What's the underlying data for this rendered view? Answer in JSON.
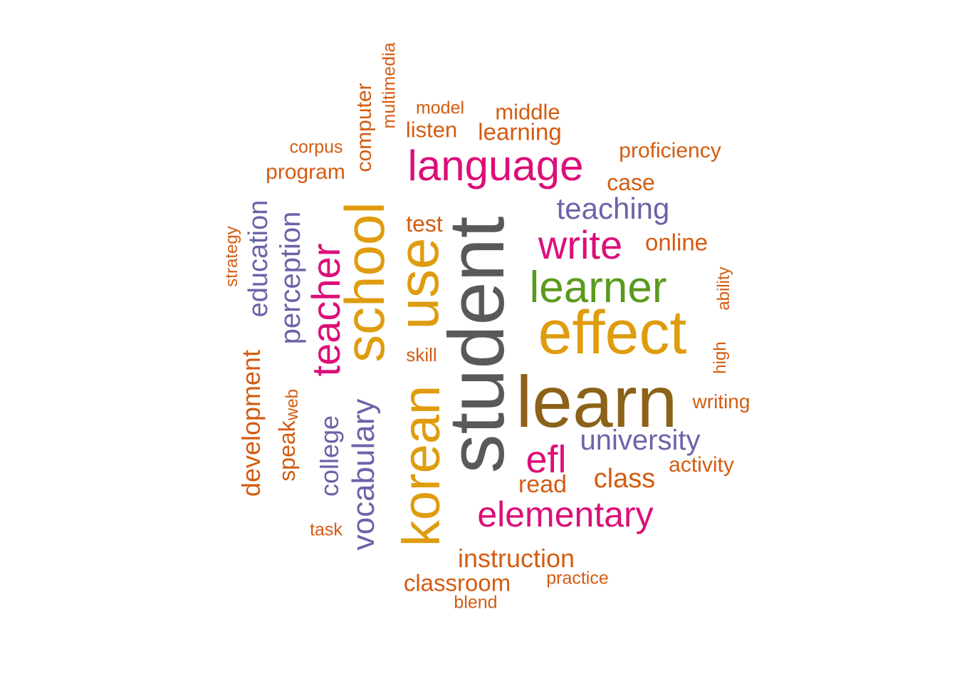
{
  "colors": {
    "gray": "#595959",
    "brown": "#8c6219",
    "gold": "#df9c0e",
    "green": "#5a9a1f",
    "magenta": "#dc0f78",
    "purple": "#6a64a8",
    "orange": "#d35c11"
  },
  "words": {
    "student": "student",
    "learn": "learn",
    "effect": "effect",
    "use": "use",
    "school": "school",
    "korean": "korean",
    "language": "language",
    "learner": "learner",
    "teacher": "teacher",
    "write": "write",
    "efl": "efl",
    "elementary": "elementary",
    "vocabulary": "vocabulary",
    "university": "university",
    "teaching": "teaching",
    "perception": "perception",
    "education": "education",
    "college": "college",
    "development": "development",
    "instruction": "instruction",
    "class": "class",
    "read": "read",
    "classroom": "classroom",
    "computer": "computer",
    "speak": "speak",
    "online": "online",
    "learning": "learning",
    "middle": "middle",
    "listen": "listen",
    "case": "case",
    "proficiency": "proficiency",
    "program": "program",
    "test": "test",
    "activity": "activity",
    "writing": "writing",
    "multimedia": "multimedia",
    "model": "model",
    "corpus": "corpus",
    "strategy": "strategy",
    "web": "web",
    "skill": "skill",
    "task": "task",
    "practice": "practice",
    "blend": "blend",
    "high": "high",
    "ability": "ability"
  }
}
